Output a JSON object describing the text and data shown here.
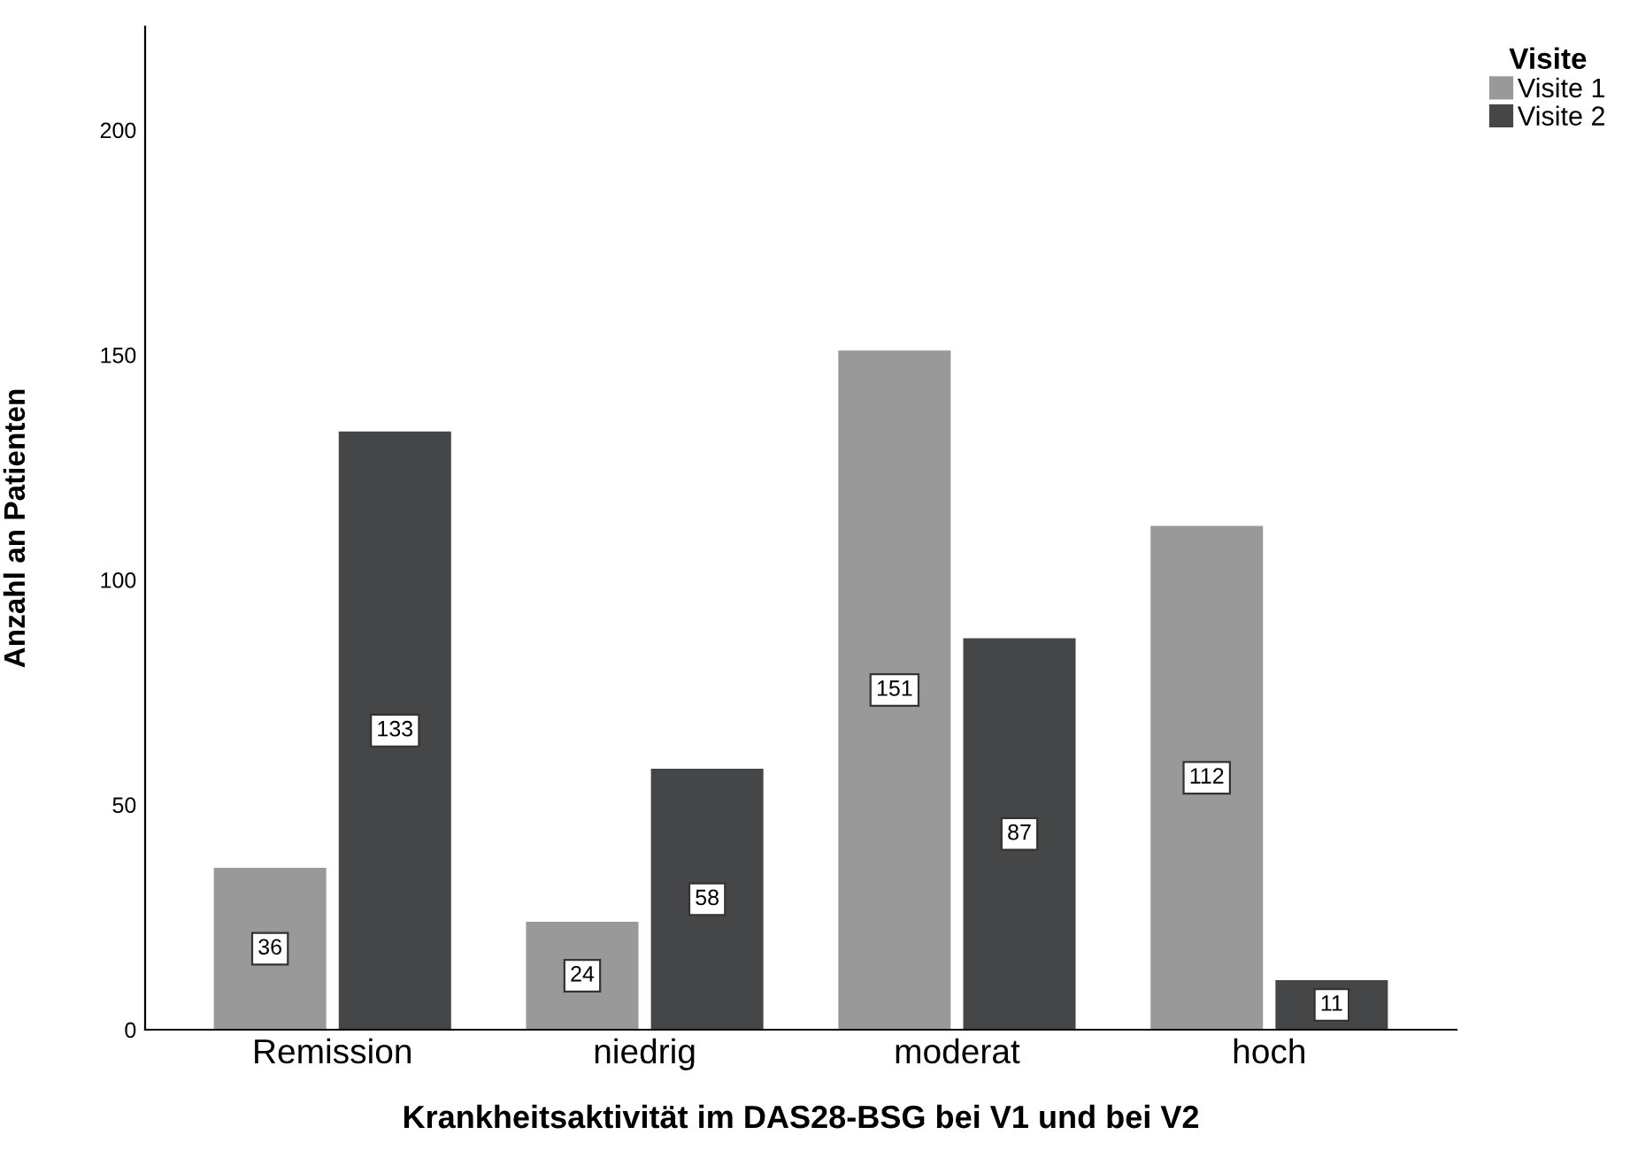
{
  "chart_data": {
    "type": "bar",
    "xlabel": "Krankheitsaktivität im DAS28-BSG bei V1 und bei V2",
    "ylabel": "Anzahl an Patienten",
    "legend_title": "Visite",
    "categories": [
      "Remission",
      "niedrig",
      "moderat",
      "hoch"
    ],
    "series": [
      {
        "name": "Visite 1",
        "color": "#999999",
        "values": [
          36,
          24,
          151,
          112
        ]
      },
      {
        "name": "Visite 2",
        "color": "#454647",
        "values": [
          133,
          58,
          87,
          11
        ]
      }
    ],
    "ylim": [
      0,
      223
    ],
    "yticks": [
      0,
      50,
      100,
      150,
      200
    ],
    "grid": false,
    "legend": "top right",
    "data_labels": true
  }
}
